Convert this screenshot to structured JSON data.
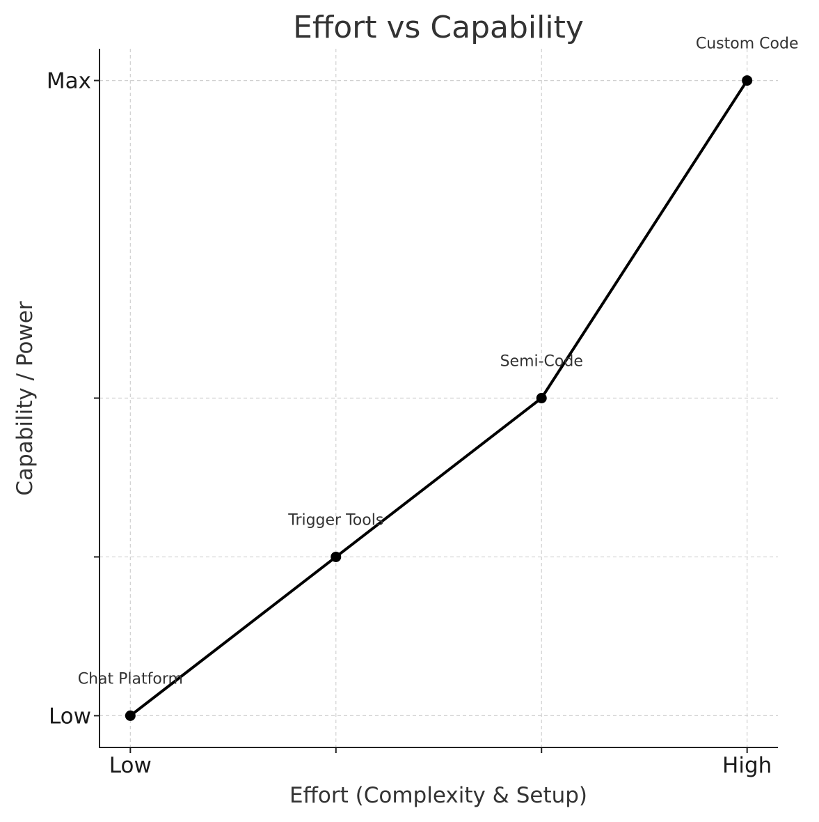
{
  "chart_data": {
    "type": "line",
    "title": "Effort vs Capability",
    "xlabel": "Effort (Complexity & Setup)",
    "ylabel": "Capability / Power",
    "xlim": [
      0.85,
      4.15
    ],
    "ylim": [
      0.8,
      5.2
    ],
    "x_ticks": [
      {
        "value": 1,
        "label": "Low"
      },
      {
        "value": 2,
        "label": ""
      },
      {
        "value": 3,
        "label": ""
      },
      {
        "value": 4,
        "label": "High"
      }
    ],
    "y_ticks": [
      {
        "value": 1,
        "label": "Low"
      },
      {
        "value": 2,
        "label": ""
      },
      {
        "value": 3,
        "label": ""
      },
      {
        "value": 5,
        "label": "Max"
      }
    ],
    "grid": true,
    "series": [
      {
        "color": "#000000",
        "x": [
          1,
          2,
          3,
          4
        ],
        "y": [
          1,
          2,
          3,
          5
        ]
      }
    ],
    "annotations": [
      {
        "text": "Chat Platform",
        "x": 1,
        "y": 1
      },
      {
        "text": "Trigger Tools",
        "x": 2,
        "y": 2
      },
      {
        "text": "Semi-Code",
        "x": 3,
        "y": 3
      },
      {
        "text": "Custom Code",
        "x": 4,
        "y": 5
      }
    ]
  }
}
